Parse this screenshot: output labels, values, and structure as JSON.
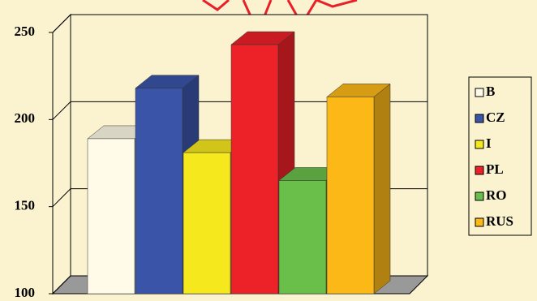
{
  "chart_data": {
    "type": "bar",
    "categories": [
      "B",
      "CZ",
      "I",
      "PL",
      "RO",
      "RUS"
    ],
    "values": [
      189,
      218,
      181,
      243,
      165,
      213
    ],
    "colors": [
      "#fffbe8",
      "#3a55a8",
      "#f5e81c",
      "#ed2128",
      "#6abf4b",
      "#fbb817"
    ],
    "ylim": [
      100,
      250
    ],
    "yticks": [
      100,
      150,
      200,
      250
    ],
    "grid": true,
    "legend": "right"
  }
}
